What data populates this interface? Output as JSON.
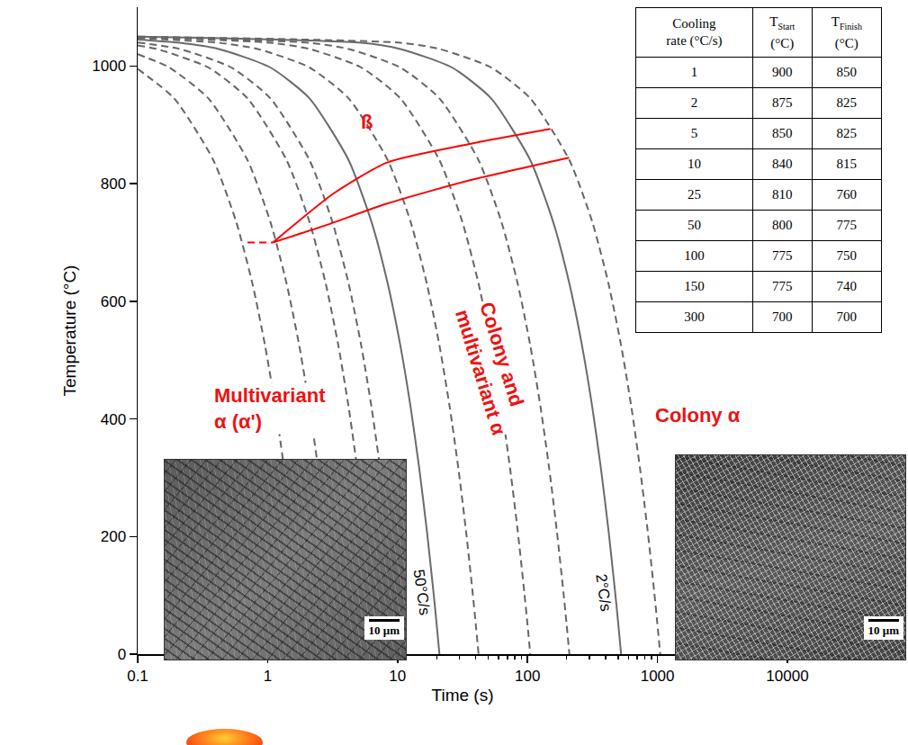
{
  "chart_data": {
    "type": "line",
    "x_label": "Time (s)",
    "y_label": "Temperature (°C)",
    "log": "x",
    "grid": false,
    "xlim": [
      0.1,
      10000
    ],
    "xticks": [
      0.1,
      1,
      10,
      100,
      1000,
      10000
    ],
    "ylim": [
      0,
      1100
    ],
    "yticks": [
      0,
      200,
      400,
      600,
      800,
      1000
    ],
    "series": [
      {
        "color": "#666666",
        "line_style": "dashed",
        "x": [
          0.1,
          0.191,
          0.382,
          0.573,
          0.764,
          0.955,
          1.15,
          1.34,
          1.53,
          1.72,
          1.81,
          1.91
        ],
        "values": [
          995,
          945,
          840,
          735,
          630,
          525,
          420,
          315,
          210,
          105,
          52.5,
          0
        ]
      },
      {
        "color": "#666666",
        "line_style": "dashed",
        "x": [
          0.1,
          0.175,
          0.35,
          0.7,
          1.05,
          1.4,
          1.75,
          2.1,
          2.45,
          2.8,
          3.15,
          3.33,
          3.5
        ],
        "values": [
          1020,
          997.5,
          945,
          840,
          735,
          630,
          525,
          420,
          315,
          210,
          105,
          52.5,
          0
        ]
      },
      {
        "color": "#666666",
        "line_style": "dashed",
        "x": [
          0.1,
          0.14,
          0.35,
          0.7,
          1.4,
          2.1,
          2.8,
          3.5,
          4.2,
          4.9,
          5.6,
          6.3,
          6.65,
          7
        ],
        "values": [
          1035,
          1029,
          997.5,
          945,
          840,
          735,
          630,
          525,
          420,
          315,
          210,
          105,
          52.5,
          0
        ]
      },
      {
        "color": "#666666",
        "line_style": "dashed",
        "x": [
          0.1,
          0.21,
          0.525,
          1.05,
          2.1,
          3.15,
          4.2,
          5.25,
          6.3,
          7.35,
          8.4,
          9.45,
          9.98,
          10.5
        ],
        "values": [
          1040,
          1029,
          997.5,
          945,
          840,
          735,
          630,
          525,
          420,
          315,
          210,
          105,
          52.5,
          0
        ]
      },
      {
        "name": "50°C/s",
        "color": "#6b6b6b",
        "line_style": "solid",
        "x": [
          0.1,
          0.21,
          0.42,
          1.05,
          2.1,
          4.2,
          6.3,
          8.4,
          10.5,
          12.6,
          14.7,
          16.8,
          18.9,
          19.95,
          21
        ],
        "values": [
          1045,
          1039.5,
          1029,
          997.5,
          945,
          840,
          735,
          630,
          525,
          420,
          315,
          210,
          105,
          52.5,
          0
        ]
      },
      {
        "color": "#666666",
        "line_style": "dashed",
        "x": [
          0.1,
          0.42,
          0.84,
          2.1,
          4.2,
          8.4,
          12.6,
          16.8,
          21,
          25.2,
          29.4,
          33.6,
          37.8,
          39.9,
          42
        ],
        "values": [
          1047.5,
          1039.5,
          1029,
          997.5,
          945,
          840,
          735,
          630,
          525,
          420,
          315,
          210,
          105,
          52.5,
          0
        ]
      },
      {
        "color": "#666666",
        "line_style": "dashed",
        "x": [
          0.1,
          1.05,
          2.1,
          5.25,
          10.5,
          21,
          31.5,
          42,
          52.5,
          63,
          73.5,
          84,
          94.5,
          99.75,
          105
        ],
        "values": [
          1049,
          1039.5,
          1029,
          997.5,
          945,
          840,
          735,
          630,
          525,
          420,
          315,
          210,
          105,
          52.5,
          0
        ]
      },
      {
        "color": "#666666",
        "line_style": "dashed",
        "x": [
          0.1,
          2.1,
          4.2,
          10.5,
          21,
          42,
          63,
          84,
          105,
          126,
          147,
          168,
          189,
          199.5,
          210
        ],
        "values": [
          1049.5,
          1039.5,
          1029,
          997.5,
          945,
          840,
          735,
          630,
          525,
          420,
          315,
          210,
          105,
          52.5,
          0
        ]
      },
      {
        "name": "2°C/s",
        "color": "#6b6b6b",
        "line_style": "solid",
        "x": [
          0.1,
          5.25,
          10.5,
          26.25,
          52.5,
          105,
          157.5,
          210,
          262.5,
          315,
          367.5,
          420,
          472.5,
          498.75,
          525
        ],
        "values": [
          1050,
          1039.5,
          1029,
          997.5,
          945,
          840,
          735,
          630,
          525,
          420,
          315,
          210,
          105,
          52.5,
          0
        ]
      },
      {
        "color": "#666666",
        "line_style": "dashed",
        "x": [
          0.1,
          10.5,
          21,
          52.5,
          105,
          210,
          315,
          420,
          525,
          630,
          735,
          840,
          945,
          997.5,
          1050
        ],
        "values": [
          1050,
          1039.5,
          1029,
          997.5,
          945,
          840,
          735,
          630,
          525,
          420,
          315,
          210,
          105,
          52.5,
          0
        ]
      },
      {
        "color": "#ff0000",
        "line_style": "solid",
        "x": [
          1.1,
          3.2,
          8.3,
          35,
          150
        ],
        "values": [
          700,
          783,
          836,
          867,
          893
        ]
      },
      {
        "color": "#ff0000",
        "line_style": "solid",
        "x": [
          1.1,
          2.7,
          8.3,
          35,
          209
        ],
        "values": [
          700,
          728,
          766,
          805,
          844
        ]
      },
      {
        "color": "#ff0000",
        "line_style": "dashed",
        "x": [
          0.7,
          1.1
        ],
        "values": [
          700,
          700
        ]
      }
    ],
    "annotations": [
      {
        "lines": [
          "ß"
        ],
        "x": 5.8,
        "y": 905
      },
      {
        "lines": [
          "Multivariant",
          "α (α')"
        ],
        "x": 1.04,
        "y": 417
      },
      {
        "lines": [
          "Colony and",
          "multivariant α"
        ],
        "x": 54,
        "y": 485
      },
      {
        "lines": [
          "Colony α"
        ],
        "x": 2030,
        "y": 406
      }
    ],
    "table": {
      "header": [
        {
          "lines": [
            "Cooling",
            "rate (°C/s)"
          ]
        },
        {
          "symbol": "T",
          "subscript": "Start",
          "unit": "(°C)"
        },
        {
          "symbol": "T",
          "subscript": "Finish",
          "unit": "(°C)"
        }
      ],
      "rows": [
        [
          1,
          900,
          850
        ],
        [
          2,
          875,
          825
        ],
        [
          5,
          850,
          825
        ],
        [
          10,
          840,
          815
        ],
        [
          25,
          810,
          760
        ],
        [
          50,
          800,
          775
        ],
        [
          100,
          775,
          750
        ],
        [
          150,
          775,
          740
        ],
        [
          300,
          700,
          700
        ]
      ]
    },
    "micrographs": [
      {
        "scale_bar": "10 μm"
      },
      {
        "scale_bar": "10 μm"
      }
    ]
  }
}
